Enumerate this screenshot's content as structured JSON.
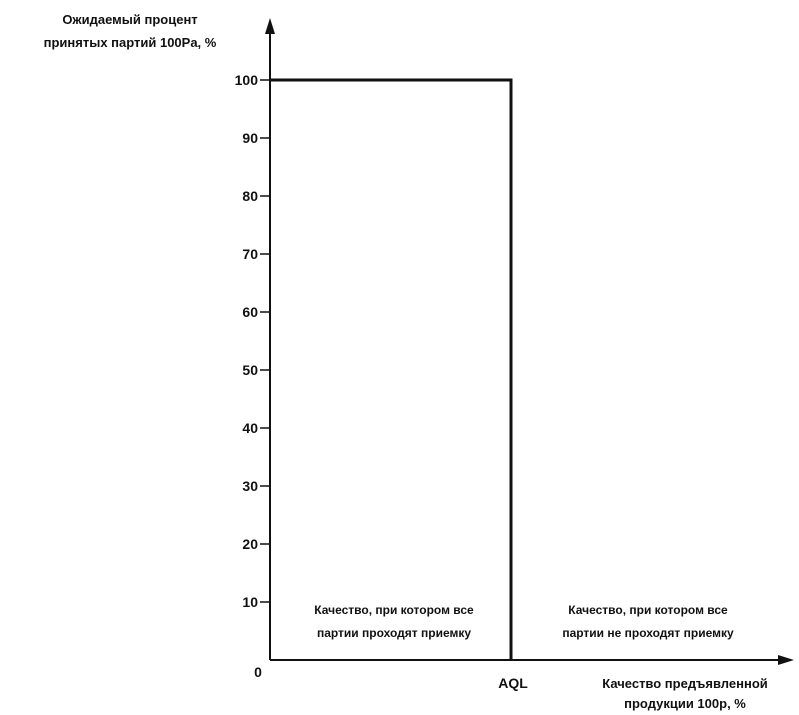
{
  "chart_data": {
    "type": "line",
    "ylabel_lines": [
      "Ожидаемый процент",
      "принятых партий 100Pa, %"
    ],
    "xlabel_lines": [
      "Качество предъявленной",
      "продукции 100p, %"
    ],
    "ylim": [
      0,
      100
    ],
    "yticks": [
      "10",
      "20",
      "30",
      "40",
      "50",
      "60",
      "70",
      "80",
      "90",
      "100"
    ],
    "origin_label": "0",
    "x_marker_label": "AQL",
    "grid": false,
    "series": [
      {
        "x": [
          0,
          1,
          1
        ],
        "y": [
          100,
          100,
          0
        ]
      }
    ],
    "annotations": {
      "left_region": [
        "Качество, при котором все",
        "партии проходят приемку"
      ],
      "right_region": [
        "Качество, при котором все",
        "партии не проходят приемку"
      ]
    }
  }
}
